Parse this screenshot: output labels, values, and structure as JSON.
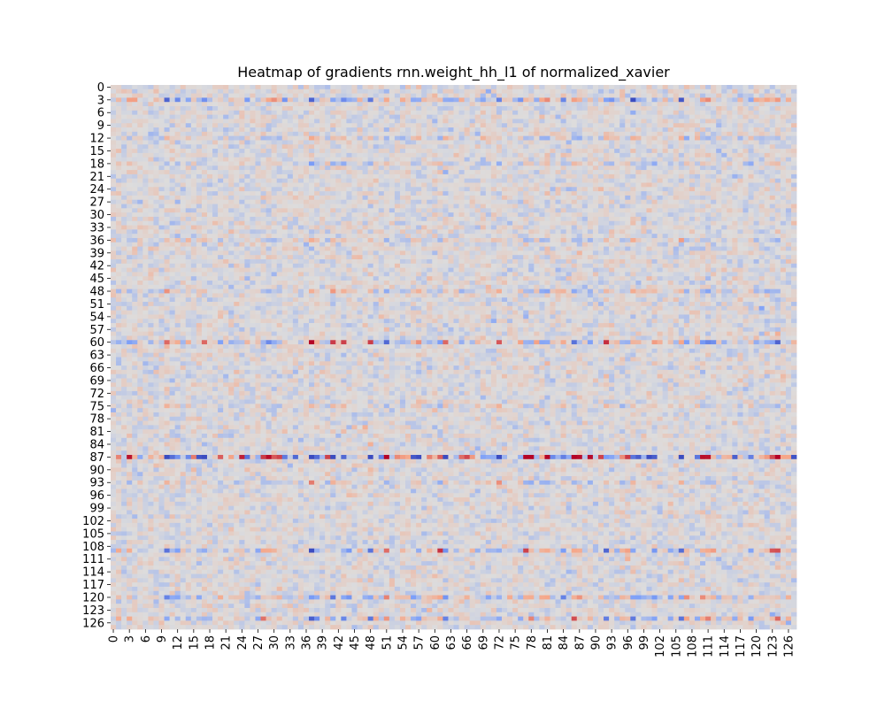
{
  "chart_data": {
    "type": "heatmap",
    "title": "Heatmap of gradients rnn.weight_hh_l1 of normalized_xavier",
    "rows": 128,
    "cols": 128,
    "colormap": "coolwarm",
    "colorbar": false,
    "xticks": [
      "0",
      "3",
      "6",
      "9",
      "12",
      "15",
      "18",
      "21",
      "24",
      "27",
      "30",
      "33",
      "36",
      "39",
      "42",
      "45",
      "48",
      "51",
      "54",
      "57",
      "60",
      "63",
      "66",
      "69",
      "72",
      "75",
      "78",
      "81",
      "84",
      "87",
      "90",
      "93",
      "96",
      "99",
      "102",
      "105",
      "108",
      "111",
      "114",
      "117",
      "120",
      "123",
      "126"
    ],
    "yticks": [
      "0",
      "3",
      "6",
      "9",
      "12",
      "15",
      "18",
      "21",
      "24",
      "27",
      "30",
      "33",
      "36",
      "39",
      "42",
      "45",
      "48",
      "51",
      "54",
      "57",
      "60",
      "63",
      "66",
      "69",
      "72",
      "75",
      "78",
      "81",
      "84",
      "87",
      "90",
      "93",
      "96",
      "99",
      "102",
      "105",
      "108",
      "111",
      "114",
      "117",
      "120",
      "123",
      "126"
    ],
    "row_intensity": {
      "3": 0.55,
      "12": 0.3,
      "18": 0.28,
      "36": 0.3,
      "48": 0.35,
      "60": 0.55,
      "75": 0.25,
      "87": 1.0,
      "93": 0.3,
      "109": 0.5,
      "120": 0.45,
      "125": 0.45
    },
    "default_row_intensity": 0.12
  }
}
